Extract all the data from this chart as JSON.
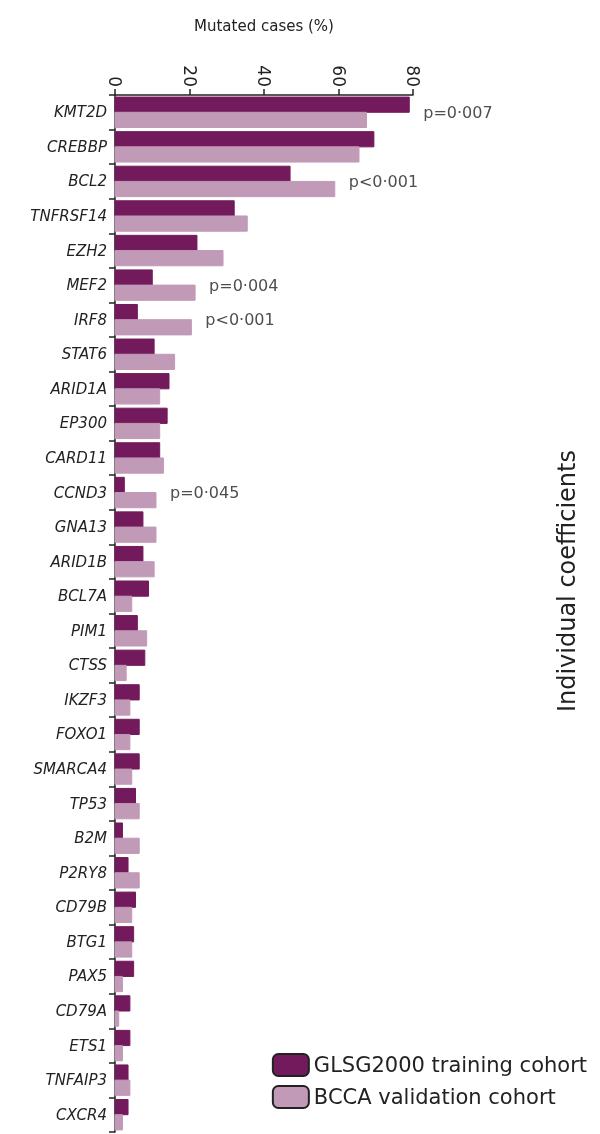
{
  "chart_data": {
    "type": "bar",
    "orientation": "horizontal",
    "xlabel": "Mutated cases (%)",
    "categories": [
      "KMT2D",
      "CREBBP",
      "BCL2",
      "TNFRSF14",
      "EZH2",
      "MEF2",
      "IRF8",
      "STAT6",
      "ARID1A",
      "EP300",
      "CARD11",
      "CCND3",
      "GNA13",
      "ARID1B",
      "BCL7A",
      "PIM1",
      "CTSS",
      "IKZF3",
      "FOXO1",
      "SMARCA4",
      "TP53",
      "B2M",
      "P2RY8",
      "CD79B",
      "BTG1",
      "PAX5",
      "CD79A",
      "ETS1",
      "TNFAIP3",
      "CXCR4"
    ],
    "series": [
      {
        "name": "GLSG2000 training cohort",
        "color": "#731a5c",
        "values": [
          79,
          69.5,
          47,
          32,
          22,
          10,
          6,
          10.5,
          14.5,
          14,
          12,
          2.5,
          7.5,
          7.5,
          9,
          6,
          8,
          6.5,
          6.5,
          6.5,
          5.5,
          2,
          3.5,
          5.5,
          5,
          5,
          4,
          4,
          3.5,
          3.5
        ]
      },
      {
        "name": "BCCA validation cohort",
        "color": "#c09ab6",
        "values": [
          67.5,
          65.5,
          59,
          35.5,
          29,
          21.5,
          20.5,
          16,
          12,
          12,
          13,
          11,
          11,
          10.5,
          4.5,
          8.5,
          3,
          4,
          4,
          4.5,
          6.5,
          6.5,
          6.5,
          4.5,
          4.5,
          2,
          1,
          2,
          4,
          2
        ]
      }
    ],
    "xlim": [
      0,
      80
    ],
    "xticks": [
      0,
      20,
      40,
      60,
      80
    ],
    "grid": false,
    "legend": "bottom right",
    "annotations": [
      {
        "text": "p=0·007",
        "x": 79,
        "y": "KMT2D"
      },
      {
        "text": "p<0·001",
        "x": 59,
        "y": "BCL2"
      },
      {
        "text": "p=0·004",
        "x": 21.5,
        "y": "MEF2"
      },
      {
        "text": "p<0·001",
        "x": 20.5,
        "y": "IRF8"
      },
      {
        "text": "p=0·045",
        "x": 11,
        "y": "CCND3"
      },
      "Individual coefficients"
    ]
  }
}
